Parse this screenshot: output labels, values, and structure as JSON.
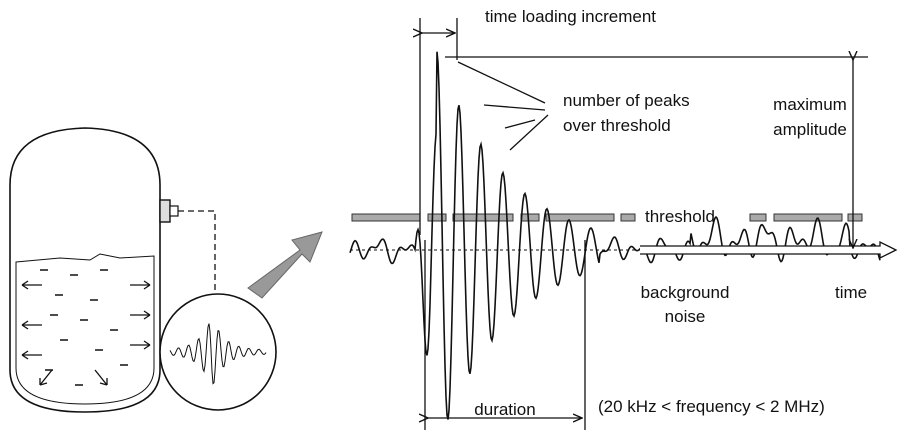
{
  "labels": {
    "time_loading_increment": "time loading increment",
    "number_of_peaks": [
      "number of peaks",
      "over threshold"
    ],
    "maximum_amplitude": [
      "maximum",
      "amplitude"
    ],
    "threshold": "threshold",
    "background_noise": [
      "background",
      "noise"
    ],
    "time": "time",
    "duration": "duration",
    "frequency": "(20 kHz < frequency < 2 MHz)"
  }
}
